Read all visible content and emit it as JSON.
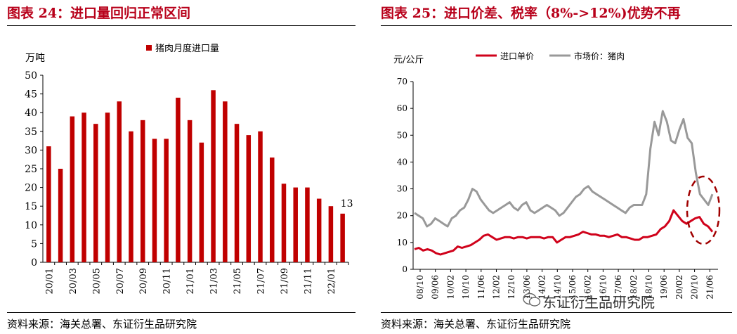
{
  "left": {
    "title": "图表 24：进口量回归正常区间",
    "source": "资料来源：海关总署、东证衍生品研究院"
  },
  "right": {
    "title": "图表 25：进口价差、税率（8%->12%)优势不再",
    "source": "资料来源：海关总署、东证衍生品研究院"
  },
  "watermark": "东证衍生品研究院",
  "chart_data": [
    {
      "type": "bar",
      "ylabel": "万吨",
      "ylim": [
        0,
        50
      ],
      "yticks": [
        0,
        5,
        10,
        15,
        20,
        25,
        30,
        35,
        40,
        45,
        50
      ],
      "legend": "top-center",
      "grid": false,
      "series": [
        {
          "name": "猪肉月度进口量",
          "color": "#c00000",
          "values": [
            31,
            25,
            39,
            40,
            37,
            40,
            43,
            35,
            38,
            33,
            33,
            44,
            38,
            32,
            46,
            43,
            37,
            34,
            35,
            28,
            21,
            20,
            20,
            17,
            15,
            13
          ]
        }
      ],
      "categories": [
        "20/01",
        "20/02",
        "20/03",
        "20/04",
        "20/05",
        "20/06",
        "20/07",
        "20/08",
        "20/09",
        "20/10",
        "20/11",
        "20/12",
        "21/01",
        "21/02",
        "21/03",
        "21/04",
        "21/05",
        "21/06",
        "21/07",
        "21/08",
        "21/09",
        "21/10",
        "21/11",
        "21/12",
        "22/01",
        "22/02"
      ],
      "tick_labels": [
        "20/01",
        "20/03",
        "20/05",
        "20/07",
        "20/09",
        "20/11",
        "21/01",
        "21/03",
        "21/05",
        "21/07",
        "21/09",
        "21/11",
        "22/01"
      ],
      "annotation": "13"
    },
    {
      "type": "line",
      "ylabel": "元/公斤",
      "ylim": [
        0,
        70
      ],
      "yticks": [
        0,
        10,
        20,
        30,
        40,
        50,
        60,
        70
      ],
      "legend": "top",
      "grid": false,
      "x_start": "2008-10",
      "tick_labels": [
        "08/10",
        "09/06",
        "10/02",
        "10/10",
        "11/06",
        "12/02",
        "12/10",
        "13/06",
        "14/02",
        "14/10",
        "15/06",
        "16/02",
        "16/10",
        "17/06",
        "18/02",
        "18/10",
        "19/06",
        "20/02",
        "20/10",
        "21/06"
      ],
      "series": [
        {
          "name": "进口单价",
          "color": "#d0021b",
          "values": [
            7.5,
            8,
            7,
            7.5,
            7,
            6,
            5.5,
            6,
            6.5,
            7,
            8.5,
            8,
            8.5,
            9,
            10,
            11,
            12.5,
            13,
            12,
            11,
            11.5,
            12,
            12,
            11.5,
            12,
            12,
            11.5,
            12,
            12,
            12,
            11.5,
            12,
            12,
            10,
            11,
            12,
            12,
            12.5,
            13,
            14,
            13.5,
            13,
            13,
            12.5,
            12.5,
            12,
            12.5,
            13,
            12,
            12,
            11.5,
            11,
            11,
            12,
            12,
            12.5,
            13,
            15,
            16,
            18,
            22,
            20,
            18,
            17,
            18,
            19,
            19.5,
            17,
            16,
            14
          ]
        },
        {
          "name": "市场价：猪肉",
          "color": "#999999",
          "values": [
            21,
            20,
            19,
            16,
            17,
            19,
            18,
            17,
            16,
            19,
            20,
            22,
            23,
            26,
            30,
            29,
            26,
            24,
            22,
            21,
            22,
            23,
            24,
            25,
            23,
            22,
            24,
            25,
            22,
            21,
            22,
            23,
            24,
            23,
            22,
            20,
            21,
            23,
            25,
            27,
            28,
            30,
            31,
            29,
            28,
            27,
            26,
            25,
            24,
            23,
            22,
            21,
            23,
            24,
            24,
            24,
            28,
            45,
            55,
            50,
            59,
            55,
            48,
            47,
            52,
            56,
            49,
            47,
            36,
            28,
            26,
            24,
            28
          ]
        }
      ],
      "annotation": "dashed red ellipse highlighting latest values"
    }
  ]
}
